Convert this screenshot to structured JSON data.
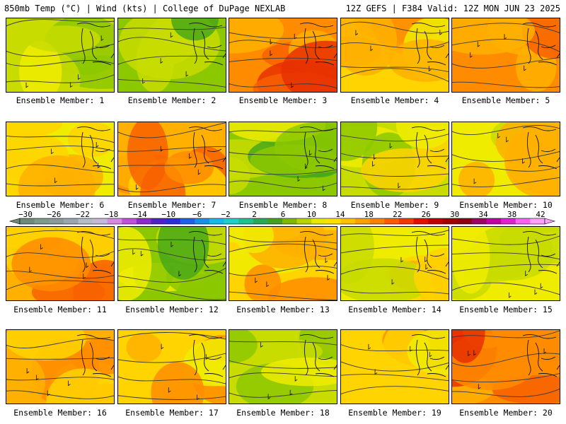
{
  "header": {
    "left": "850mb Temp (°C) | Wind (kts) | College of DuPage NEXLAB",
    "right": "12Z GEFS | F384 Valid: 12Z MON JUN 23 2025"
  },
  "members": [
    {
      "label": "Ensemble Member: 1",
      "warmth": 0.35
    },
    {
      "label": "Ensemble Member: 2",
      "warmth": 0.25
    },
    {
      "label": "Ensemble Member: 3",
      "warmth": 0.85
    },
    {
      "label": "Ensemble Member: 4",
      "warmth": 0.65
    },
    {
      "label": "Ensemble Member: 5",
      "warmth": 0.9
    },
    {
      "label": "Ensemble Member: 6",
      "warmth": 0.55
    },
    {
      "label": "Ensemble Member: 7",
      "warmth": 0.7
    },
    {
      "label": "Ensemble Member: 8",
      "warmth": 0.2
    },
    {
      "label": "Ensemble Member: 9",
      "warmth": 0.35
    },
    {
      "label": "Ensemble Member: 10",
      "warmth": 0.5
    },
    {
      "label": "Ensemble Member: 11",
      "warmth": 0.7
    },
    {
      "label": "Ensemble Member: 12",
      "warmth": 0.3
    },
    {
      "label": "Ensemble Member: 13",
      "warmth": 0.6
    },
    {
      "label": "Ensemble Member: 14",
      "warmth": 0.45
    },
    {
      "label": "Ensemble Member: 15",
      "warmth": 0.55
    },
    {
      "label": "Ensemble Member: 16",
      "warmth": 0.8
    },
    {
      "label": "Ensemble Member: 17",
      "warmth": 0.65
    },
    {
      "label": "Ensemble Member: 18",
      "warmth": 0.4
    },
    {
      "label": "Ensemble Member: 19",
      "warmth": 0.6
    },
    {
      "label": "Ensemble Member: 20",
      "warmth": 0.85
    }
  ],
  "colorbar": {
    "ticks": [
      "−30",
      "−26",
      "−22",
      "−18",
      "−14",
      "−10",
      "−6",
      "−2",
      "2",
      "6",
      "10",
      "14",
      "18",
      "22",
      "26",
      "30",
      "34",
      "38",
      "42"
    ],
    "colors": [
      "#6e8a7a",
      "#7d9b8b",
      "#8a9a9a",
      "#9aa6ae",
      "#b4bcc8",
      "#c6b8d8",
      "#d58ae0",
      "#c050d8",
      "#8a2ad0",
      "#5020c8",
      "#2a30d8",
      "#2060e8",
      "#1890f0",
      "#18b8e8",
      "#20d0c8",
      "#20c090",
      "#28a858",
      "#48a020",
      "#80b800",
      "#b8d400",
      "#e8e800",
      "#ffe000",
      "#ffc000",
      "#ffa000",
      "#ff8000",
      "#ff5c00",
      "#f03a00",
      "#e01000",
      "#c00000",
      "#a00000",
      "#900010",
      "#a00060",
      "#c000a0",
      "#e020d0",
      "#ff60f0",
      "#ffa0ff"
    ]
  }
}
